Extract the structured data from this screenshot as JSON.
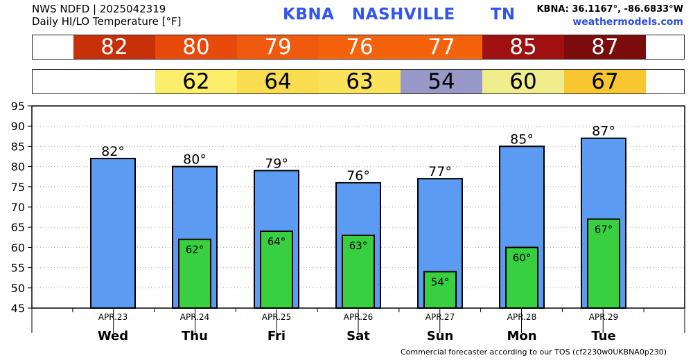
{
  "header": {
    "line1": "NWS NDFD | 2025042319",
    "line2": "Daily HI/LO Temperature [°F]",
    "station_title": "KBNA   NASHVILLE      TN",
    "coords": "KBNA: 36.1167°, -86.6833°W",
    "site": "weathermodels.com"
  },
  "hi_strip": [
    {
      "text": "82",
      "color": "#c8300a"
    },
    {
      "text": "80",
      "color": "#e84a0c"
    },
    {
      "text": "79",
      "color": "#f05a0e"
    },
    {
      "text": "76",
      "color": "#f5620c"
    },
    {
      "text": "77",
      "color": "#f5620c"
    },
    {
      "text": "85",
      "color": "#a01010"
    },
    {
      "text": "87",
      "color": "#7a0c0c"
    }
  ],
  "lo_strip": [
    {
      "text": "",
      "color": "#ffffff"
    },
    {
      "text": "62",
      "color": "#fbee6a"
    },
    {
      "text": "64",
      "color": "#f9dc50"
    },
    {
      "text": "63",
      "color": "#fae35a"
    },
    {
      "text": "54",
      "color": "#9899c8"
    },
    {
      "text": "60",
      "color": "#f0ee8c"
    },
    {
      "text": "67",
      "color": "#f8c630"
    }
  ],
  "chart_data": {
    "type": "bar",
    "categories": [
      "Wed",
      "Thu",
      "Fri",
      "Sat",
      "Sun",
      "Mon",
      "Tue"
    ],
    "dates": [
      "APR.23",
      "APR.24",
      "APR.25",
      "APR.26",
      "APR.27",
      "APR.28",
      "APR.29"
    ],
    "series": [
      {
        "values": [
          82,
          80,
          79,
          76,
          77,
          85,
          87
        ],
        "labels": [
          "82°",
          "80°",
          "79°",
          "76°",
          "77°",
          "85°",
          "87°"
        ],
        "color": "#5b9cf2"
      },
      {
        "values": [
          null,
          62,
          64,
          63,
          54,
          60,
          67
        ],
        "labels": [
          "",
          "62°",
          "64°",
          "63°",
          "54°",
          "60°",
          "67°"
        ],
        "color": "#38d040"
      }
    ],
    "ylim": [
      45,
      95
    ],
    "yticks": [
      "45",
      "50",
      "55",
      "60",
      "65",
      "70",
      "75",
      "80",
      "85",
      "90",
      "95"
    ],
    "grid": true
  },
  "footer": "Commercial forecaster according to our TOS (cf2230w0UKBNA0p230)"
}
